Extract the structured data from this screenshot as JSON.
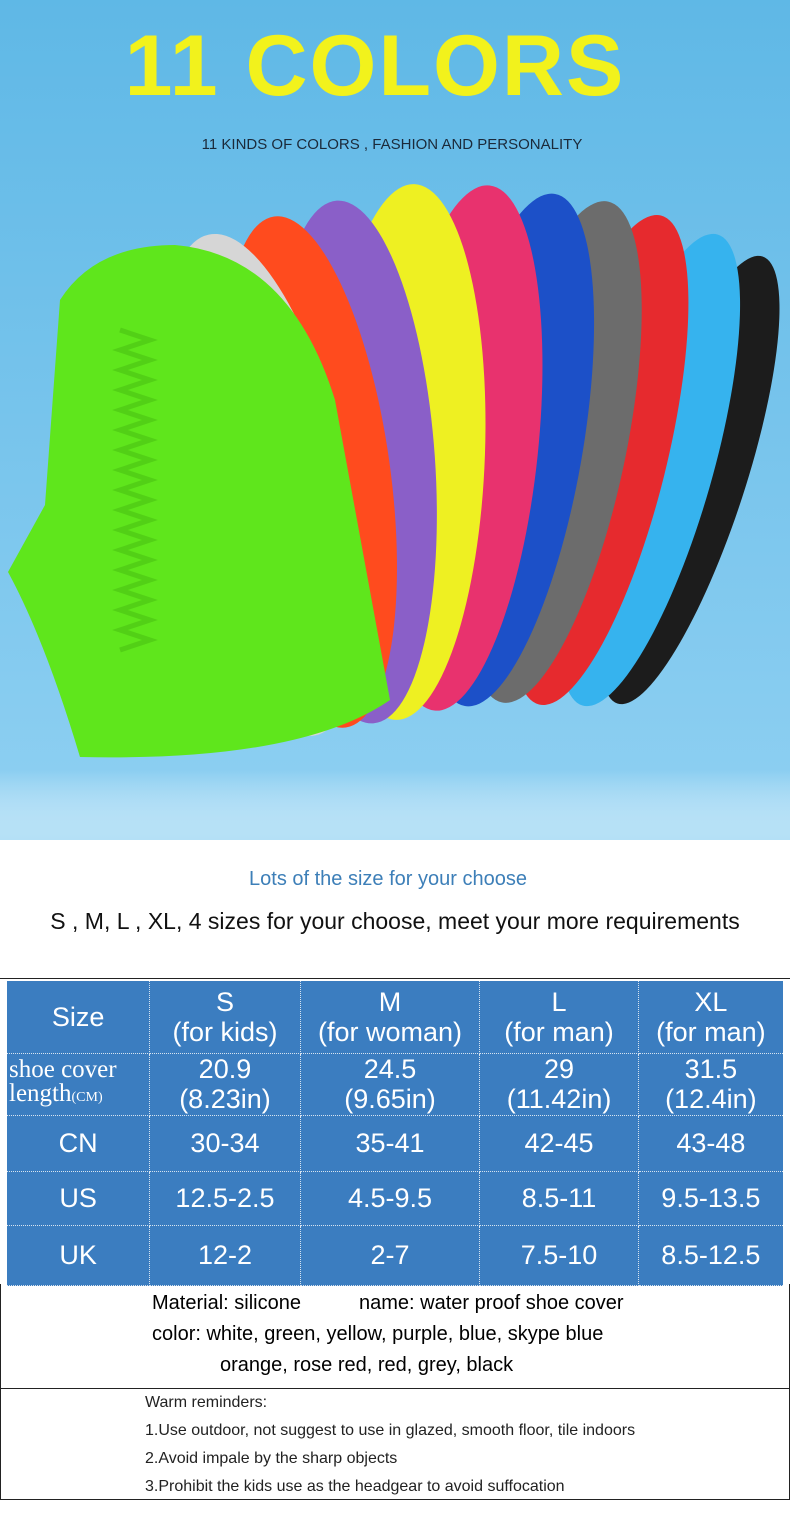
{
  "banner": {
    "title": "11 COLORS",
    "subtitle": "11 KINDS OF COLORS , FASHION AND PERSONALITY"
  },
  "sizes": {
    "heading": "Lots of the size for your choose",
    "text": "S , M,  L , XL, 4 sizes for your choose, meet your more requirements"
  },
  "table": {
    "header": [
      [
        "Size"
      ],
      [
        "S",
        "(for kids)"
      ],
      [
        "M",
        "(for woman)"
      ],
      [
        "L",
        "(for man)"
      ],
      [
        "XL",
        "(for man)"
      ]
    ],
    "rows": [
      [
        {
          "line1": "shoe cover",
          "line2": "length",
          "unit": "(CM)"
        },
        [
          "20.9",
          "(8.23in)"
        ],
        [
          "24.5",
          "(9.65in)"
        ],
        [
          "29",
          "(11.42in)"
        ],
        [
          "31.5",
          "(12.4in)"
        ]
      ],
      [
        [
          "CN"
        ],
        [
          "30-34"
        ],
        [
          "35-41"
        ],
        [
          "42-45"
        ],
        [
          "43-48"
        ]
      ],
      [
        [
          "US"
        ],
        [
          "12.5-2.5"
        ],
        [
          "4.5-9.5"
        ],
        [
          "8.5-11"
        ],
        [
          "9.5-13.5"
        ]
      ],
      [
        [
          "UK"
        ],
        [
          "12-2"
        ],
        [
          "2-7"
        ],
        [
          "7.5-10"
        ],
        [
          "8.5-12.5"
        ]
      ]
    ]
  },
  "info": {
    "material": "Material: silicone",
    "name": "name: water proof shoe cover",
    "colors1": "color: white, green, yellow, purple, blue, skype blue",
    "colors2": "orange, rose red, red, grey, black"
  },
  "reminders": {
    "title": "Warm reminders:",
    "items": [
      "1.Use outdoor, not suggest to use in glazed, smooth floor, tile indoors",
      "2.Avoid impale by the sharp objects",
      "3.Prohibit the kids use as the headgear to avoid suffocation"
    ]
  }
}
